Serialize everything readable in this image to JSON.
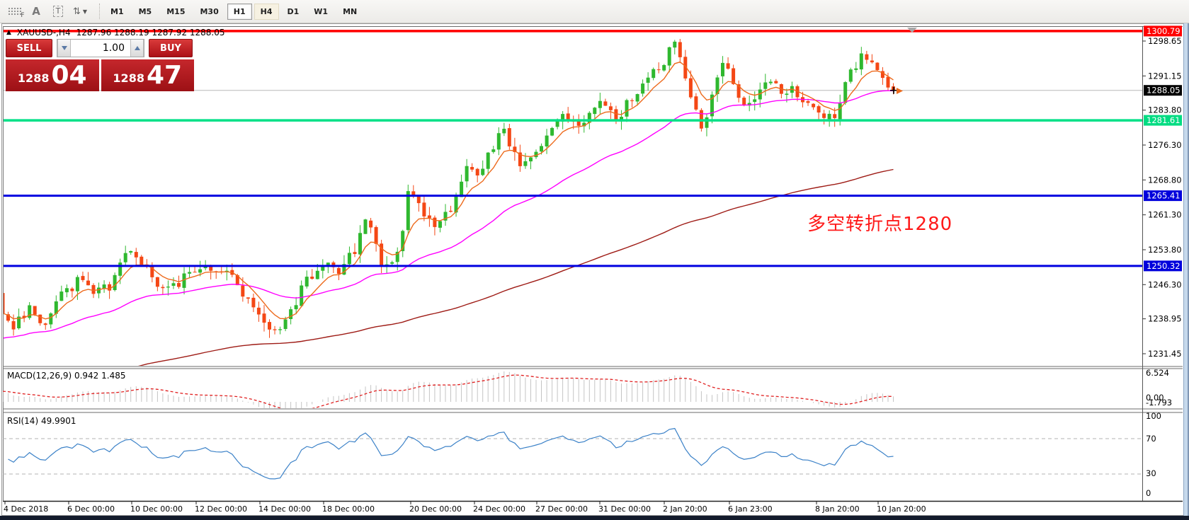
{
  "toolbar": {
    "icons": [
      {
        "glyph": "F"
      },
      {
        "glyph": "A"
      },
      {
        "glyph": "T"
      },
      {
        "glyph": "⇅",
        "caret": "▼"
      }
    ],
    "timeframes": [
      {
        "label": "M1"
      },
      {
        "label": "M5"
      },
      {
        "label": "M15"
      },
      {
        "label": "M30"
      },
      {
        "label": "H1"
      },
      {
        "label": "H4"
      },
      {
        "label": "D1"
      },
      {
        "label": "W1"
      },
      {
        "label": "MN"
      }
    ],
    "active_timeframe": "H1",
    "highlight_timeframe": "H4"
  },
  "chart": {
    "collapse_glyph": "▲",
    "title_text": "XAUUSD-,H4",
    "ohlc_text": "1287.96 1288.19 1287.92 1288.05"
  },
  "trade_panel": {
    "sell_label": "SELL",
    "buy_label": "BUY",
    "volume": "1.00",
    "sell_price_small": "1288",
    "sell_price_big": "04",
    "buy_price_small": "1288",
    "buy_price_big": "47"
  },
  "indicators": {
    "macd": {
      "label": "MACD(12,26,9) 0.942 1.485",
      "axis": [
        "6.524",
        "0.00",
        "-1.793"
      ]
    },
    "rsi": {
      "label": "RSI(14) 49.9901",
      "axis": [
        "100",
        "70",
        "30",
        "0"
      ]
    }
  },
  "chart_data": {
    "type": "candlestick",
    "symbol": "XAUUSD-",
    "period": "H4",
    "ohlc": {
      "open": 1287.96,
      "high": 1288.19,
      "low": 1287.92,
      "close": 1288.05
    },
    "last_price": 1288.05,
    "price_axis_ticks": [
      1298.65,
      1291.15,
      1283.8,
      1276.3,
      1268.8,
      1261.3,
      1253.8,
      1246.3,
      1238.95,
      1231.45
    ],
    "hlines": [
      {
        "price": 1300.79,
        "color": "#FF0000",
        "width": 3.5,
        "box": "#FF0000",
        "name": "resistance-line"
      },
      {
        "price": 1288.05,
        "color": "#B8B8B8",
        "width": 1,
        "box": "#000000",
        "name": "current-price-line"
      },
      {
        "price": 1281.61,
        "color": "#00E087",
        "width": 3.5,
        "box": "#00DC82",
        "name": "green-support-line"
      },
      {
        "price": 1265.41,
        "color": "#0000E0",
        "width": 3,
        "box": "#0000DC",
        "name": "blue-support-line-1"
      },
      {
        "price": 1250.32,
        "color": "#0000E0",
        "width": 3,
        "box": "#0000DC",
        "name": "blue-support-line-2"
      }
    ],
    "price_path": [
      [
        4,
        1240.5
      ],
      [
        20,
        1237.5
      ],
      [
        40,
        1241
      ],
      [
        62,
        1238
      ],
      [
        85,
        1243.5
      ],
      [
        110,
        1247
      ],
      [
        135,
        1244.5
      ],
      [
        155,
        1246
      ],
      [
        180,
        1254
      ],
      [
        205,
        1250
      ],
      [
        235,
        1244.5
      ],
      [
        265,
        1248.5
      ],
      [
        295,
        1250.5
      ],
      [
        325,
        1248
      ],
      [
        350,
        1243.5
      ],
      [
        372,
        1238
      ],
      [
        388,
        1236.2
      ],
      [
        410,
        1240.5
      ],
      [
        432,
        1247
      ],
      [
        455,
        1250.5
      ],
      [
        478,
        1249.5
      ],
      [
        500,
        1253.5
      ],
      [
        520,
        1261.5
      ],
      [
        543,
        1248.8
      ],
      [
        565,
        1254.5
      ],
      [
        578,
        1267
      ],
      [
        598,
        1261.5
      ],
      [
        615,
        1257.5
      ],
      [
        638,
        1263
      ],
      [
        658,
        1272.5
      ],
      [
        673,
        1269.5
      ],
      [
        692,
        1275
      ],
      [
        710,
        1280.5
      ],
      [
        722,
        1276
      ],
      [
        737,
        1270.8
      ],
      [
        755,
        1274.5
      ],
      [
        775,
        1279
      ],
      [
        795,
        1283.4
      ],
      [
        815,
        1280.2
      ],
      [
        835,
        1284
      ],
      [
        852,
        1286.3
      ],
      [
        870,
        1281.8
      ],
      [
        888,
        1285.5
      ],
      [
        905,
        1289.5
      ],
      [
        925,
        1292
      ],
      [
        940,
        1295
      ],
      [
        952,
        1298.2
      ],
      [
        963,
        1294
      ],
      [
        977,
        1285.5
      ],
      [
        992,
        1279.8
      ],
      [
        1007,
        1288
      ],
      [
        1022,
        1293.5
      ],
      [
        1038,
        1288.5
      ],
      [
        1052,
        1284.5
      ],
      [
        1068,
        1287
      ],
      [
        1082,
        1290.5
      ],
      [
        1095,
        1289
      ],
      [
        1108,
        1287.5
      ],
      [
        1122,
        1288.5
      ],
      [
        1135,
        1285.5
      ],
      [
        1148,
        1283.5
      ],
      [
        1162,
        1282.3
      ],
      [
        1178,
        1281.8
      ],
      [
        1192,
        1288.5
      ],
      [
        1204,
        1292.5
      ],
      [
        1218,
        1296
      ],
      [
        1230,
        1294.5
      ],
      [
        1242,
        1291.5
      ],
      [
        1252,
        1289.3
      ],
      [
        1262,
        1288.05
      ]
    ],
    "extreme_pins": [
      [
        952,
        "h",
        1298.9
      ],
      [
        1218,
        "h",
        1297.4
      ],
      [
        388,
        "l",
        1235.6
      ],
      [
        992,
        "l",
        1279.2
      ],
      [
        1175,
        "l",
        1280.2
      ],
      [
        62,
        "l",
        1236.6
      ],
      [
        4,
        "l",
        1233.5
      ],
      [
        4,
        "o",
        1244.5
      ]
    ],
    "x_labels": [
      [
        7,
        "4 Dec 2018"
      ],
      [
        97,
        "6 Dec 00:00"
      ],
      [
        186,
        "10 Dec 00:00"
      ],
      [
        277,
        "12 Dec 00:00"
      ],
      [
        367,
        "14 Dec 00:00"
      ],
      [
        457,
        "18 Dec 00:00"
      ],
      [
        580,
        "20 Dec 00:00"
      ],
      [
        670,
        "24 Dec 00:00"
      ],
      [
        758,
        "27 Dec 00:00"
      ],
      [
        847,
        "31 Dec 00:00"
      ],
      [
        938,
        "2 Jan 20:00"
      ],
      [
        1030,
        "6 Jan 23:00"
      ],
      [
        1153,
        "8 Jan 20:00"
      ],
      [
        1240,
        "10 Jan 20:00"
      ]
    ],
    "moving_averages": [
      {
        "name": "fast",
        "period": 7,
        "color": "#ED6A1C"
      },
      {
        "name": "medium",
        "period": 38,
        "color": "#FF00FF",
        "seed": 1234.5
      },
      {
        "name": "slow",
        "period": 150,
        "color": "#9E1B15",
        "seed": 1222
      }
    ],
    "macd": {
      "fast": 12,
      "slow": 26,
      "signal": 9,
      "value": 0.942,
      "signal_value": 1.485,
      "scale_max": 6.524,
      "scale_min": -1.793,
      "hist_color": "#C4C4C4",
      "signal_color": "#E02020"
    },
    "rsi": {
      "period": 14,
      "value": 49.99,
      "levels": [
        70,
        30
      ],
      "color": "#3C82C8"
    },
    "annotation": {
      "text": "多空转折点1280",
      "color": "#FF1A1A"
    },
    "colors": {
      "up": "#2FB82F",
      "down": "#F44715"
    }
  }
}
